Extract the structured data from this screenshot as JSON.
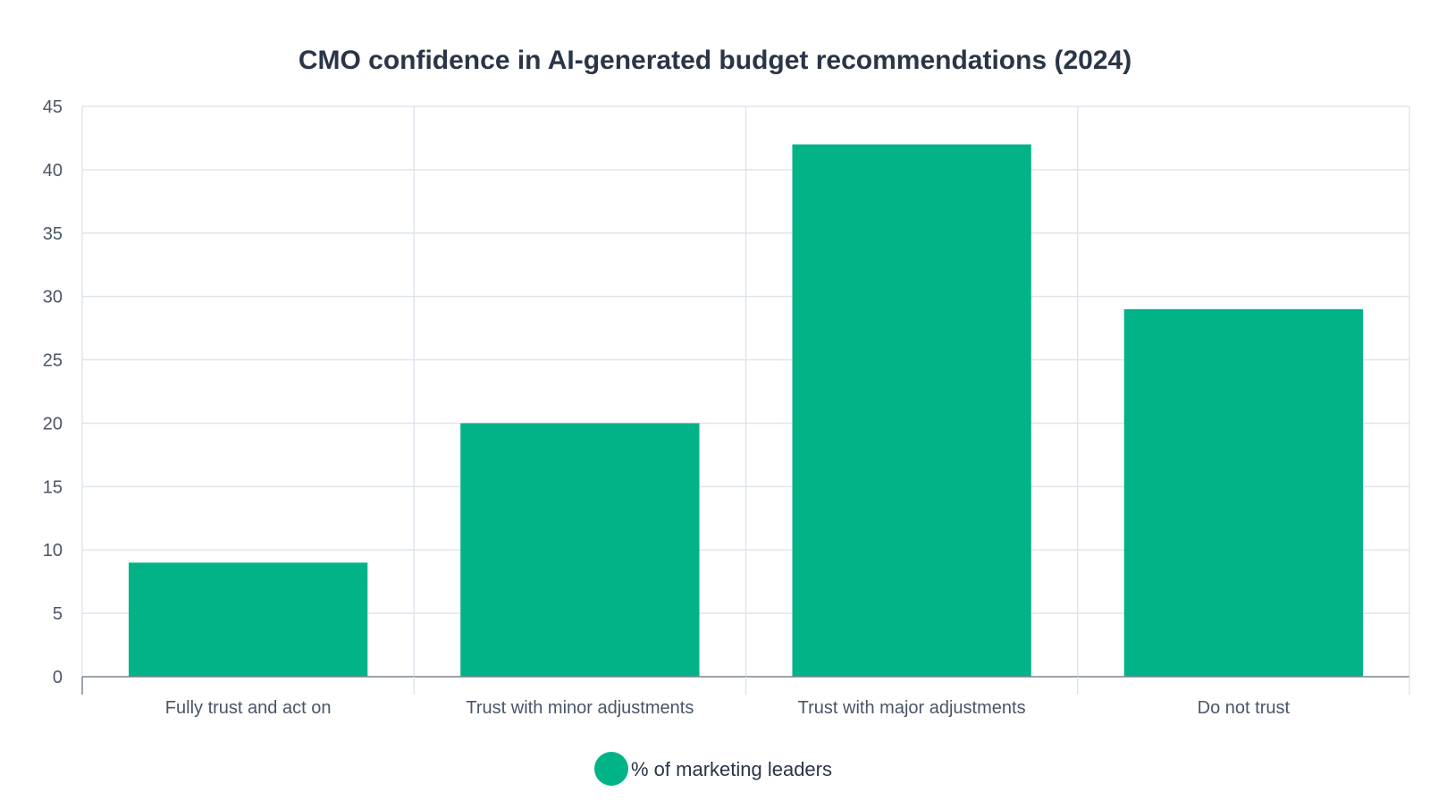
{
  "chart_data": {
    "type": "bar",
    "title": "CMO confidence in AI-generated budget recommendations (2024)",
    "xlabel": "",
    "ylabel": "",
    "categories": [
      "Fully trust and act on",
      "Trust with minor adjustments",
      "Trust with major adjustments",
      "Do not trust"
    ],
    "series": [
      {
        "name": "% of marketing leaders",
        "values": [
          9,
          20,
          42,
          29
        ],
        "color": "#03b388"
      }
    ],
    "ylim": [
      0,
      45
    ],
    "yticks": [
      0,
      5,
      10,
      15,
      20,
      25,
      30,
      35,
      40,
      45
    ],
    "grid": true,
    "legend_position": "bottom-center"
  }
}
